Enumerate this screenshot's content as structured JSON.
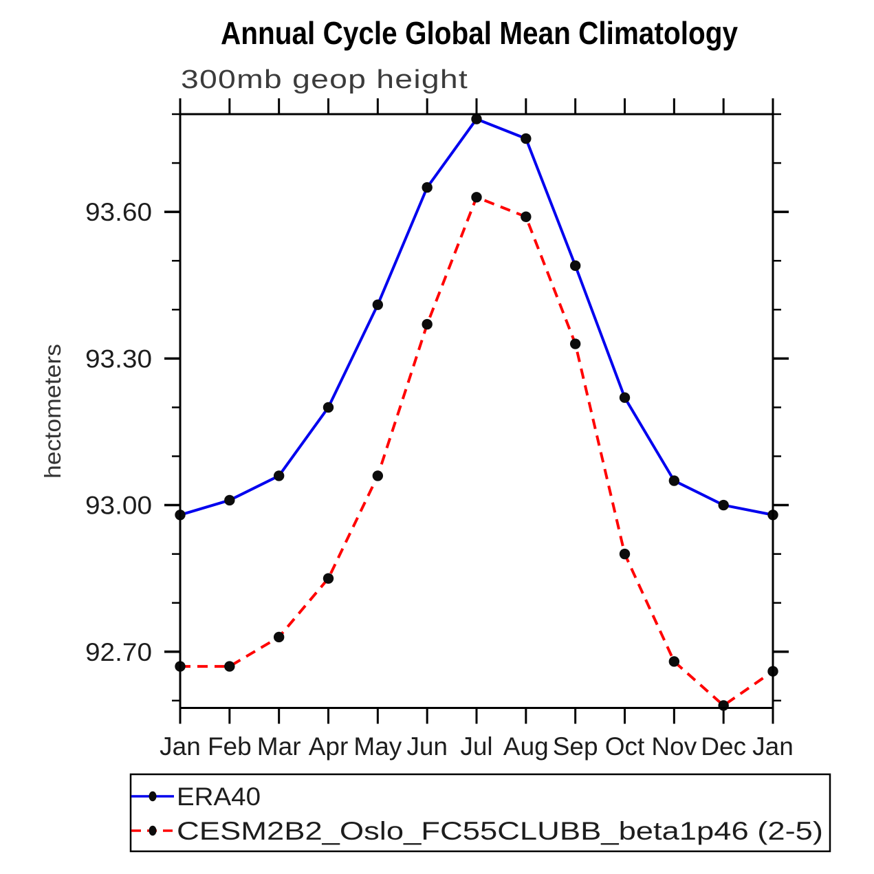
{
  "chart_data": {
    "type": "line",
    "title": "Annual Cycle Global Mean Climatology",
    "subtitle": "300mb geop height",
    "ylabel": "hectometers",
    "categories": [
      "Jan",
      "Feb",
      "Mar",
      "Apr",
      "May",
      "Jun",
      "Jul",
      "Aug",
      "Sep",
      "Oct",
      "Nov",
      "Dec",
      "Jan"
    ],
    "series": [
      {
        "name": "ERA40",
        "style": "solid",
        "color": "#0000ee",
        "marker_color": "#0c0c0c",
        "values": [
          92.98,
          93.01,
          93.06,
          93.2,
          93.41,
          93.65,
          93.79,
          93.75,
          93.49,
          93.22,
          93.05,
          93.0,
          92.98
        ]
      },
      {
        "name": "CESM2B2_Oslo_FC55CLUBB_beta1p46 (2-5)",
        "style": "dashed",
        "color": "#ff0000",
        "marker_color": "#0c0c0c",
        "values": [
          92.67,
          92.67,
          92.73,
          92.85,
          93.06,
          93.37,
          93.63,
          93.59,
          93.33,
          92.9,
          92.68,
          92.59,
          92.66
        ]
      }
    ],
    "ylim": [
      92.585,
      93.8
    ],
    "yticks_major": [
      92.7,
      93.0,
      93.3,
      93.6
    ],
    "ytick_labels": [
      "92.70",
      "93.00",
      "93.30",
      "93.60"
    ],
    "yticks_minor": [
      92.6,
      92.8,
      92.9,
      93.1,
      93.2,
      93.4,
      93.5,
      93.7,
      93.8
    ],
    "grid": false,
    "legend_position": "bottom",
    "frame_color": "#000000"
  }
}
